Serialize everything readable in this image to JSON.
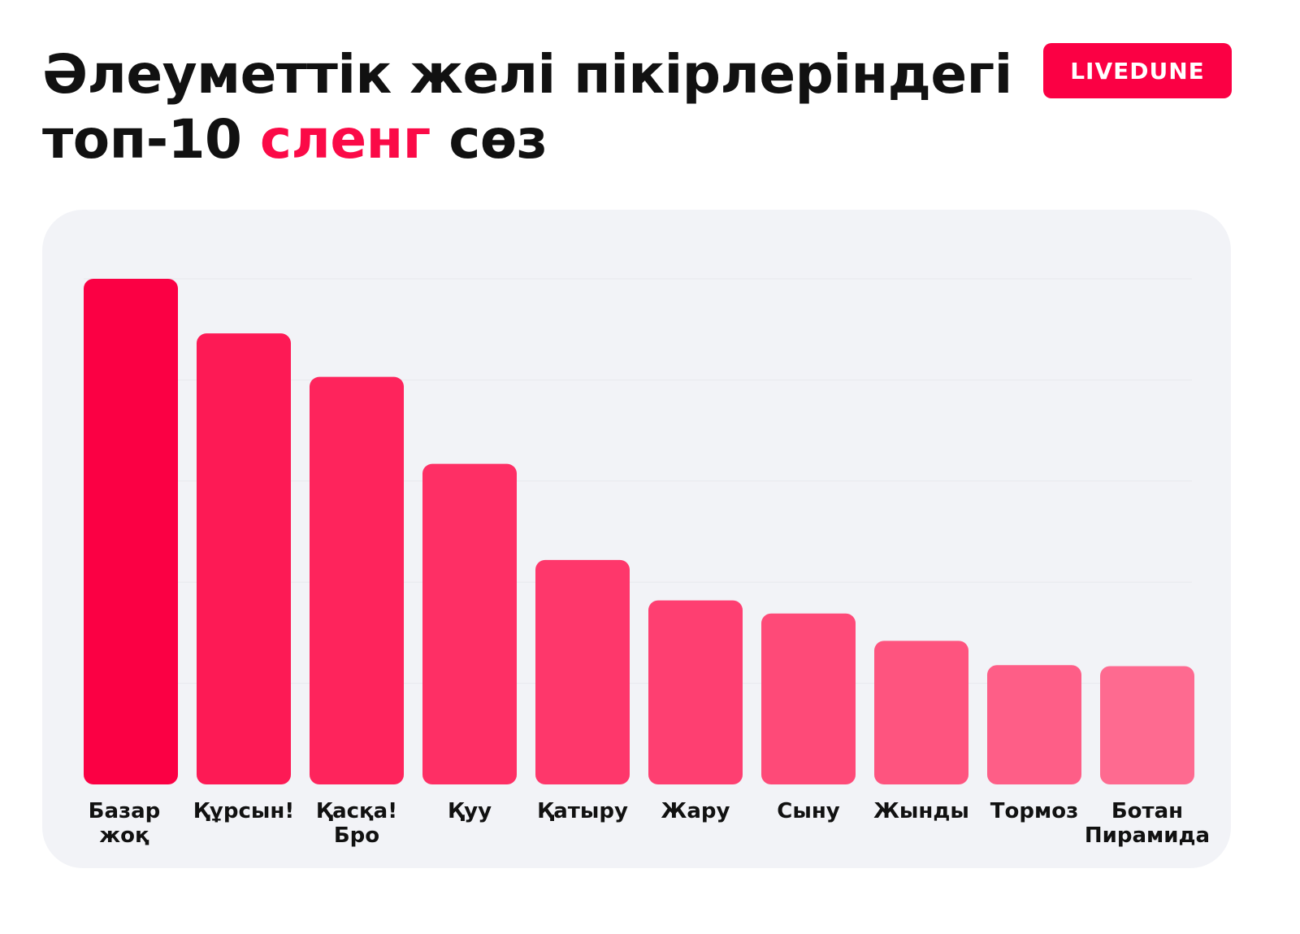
{
  "header": {
    "title_line1": "Әлеуметтік желі пікірлеріндегі",
    "title_line2_before": "топ-10 ",
    "title_line2_accent": "сленг",
    "title_line2_after": " сөз",
    "brand_badge": "LIVEDUNE"
  },
  "colors": {
    "accent": "#fb0044",
    "card_bg": "#f2f3f7",
    "text": "#111111"
  },
  "chart_data": {
    "type": "bar",
    "title": "Әлеуметтік желі пікірлеріндегі топ-10 сленг сөз",
    "categories": [
      [
        "Базар",
        "жоқ"
      ],
      [
        "Құрсын!"
      ],
      [
        "Қасқа!",
        "Бро"
      ],
      [
        "Қуу"
      ],
      [
        "Қатыру"
      ],
      [
        "Жару"
      ],
      [
        "Сыну"
      ],
      [
        "Жынды"
      ],
      [
        "Тормоз"
      ],
      [
        "Ботан",
        "Пирамида"
      ]
    ],
    "values": [
      5.0,
      4.46,
      4.03,
      3.17,
      2.22,
      1.82,
      1.69,
      1.42,
      1.18,
      1.17
    ],
    "bar_colors": [
      "#fb0044",
      "#fd1a55",
      "#fe245c",
      "#fe2f65",
      "#fe376b",
      "#fe3f71",
      "#fe4a78",
      "#fe547f",
      "#fe5e87",
      "#fe6a90"
    ],
    "ylim": [
      0,
      5
    ],
    "grid": true,
    "xlabel": "",
    "ylabel": ""
  }
}
